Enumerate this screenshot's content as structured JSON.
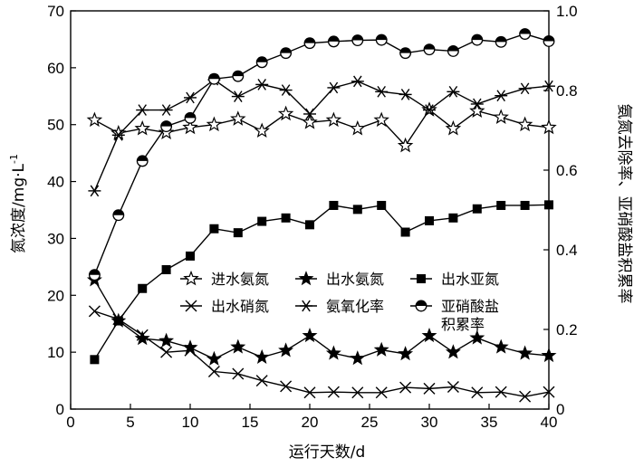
{
  "chart_data": {
    "type": "line",
    "xlabel": "运行天数/d",
    "ylabel_left": "氮浓度/mg·L",
    "ylabel_left_sup": "-1",
    "ylabel_right": "氨氮去除率、亚硝酸盐积累率",
    "xlim": [
      0,
      40
    ],
    "ylim_left": [
      0,
      70
    ],
    "ylim_right": [
      0,
      1.0
    ],
    "xticks": [
      0,
      5,
      10,
      15,
      20,
      25,
      30,
      35,
      40
    ],
    "yticks_left": [
      0,
      10,
      20,
      30,
      40,
      50,
      60,
      70
    ],
    "yticks_right": [
      0,
      0.2,
      0.4,
      0.6,
      0.8,
      1.0
    ],
    "ytick_labels_right": [
      "0",
      "0.2",
      "0.4",
      "0.6",
      "0.8",
      "1.0"
    ],
    "grid": false,
    "legend_position": "center-right",
    "series": [
      {
        "name": "进水氨氮",
        "axis": "left",
        "marker": "star-open",
        "x": [
          2,
          4,
          6,
          8,
          10,
          12,
          14,
          16,
          18,
          20,
          22,
          24,
          26,
          28,
          30,
          32,
          34,
          36,
          38,
          40
        ],
        "y": [
          50.8,
          48.5,
          49.3,
          48.6,
          49.5,
          50.0,
          51.0,
          48.9,
          51.9,
          50.4,
          50.8,
          49.3,
          50.8,
          46.3,
          52.6,
          49.3,
          52.4,
          51.3,
          50.0,
          49.5
        ]
      },
      {
        "name": "出水氨氮",
        "axis": "left",
        "marker": "star-filled",
        "x": [
          2,
          4,
          6,
          8,
          10,
          12,
          14,
          16,
          18,
          20,
          22,
          24,
          26,
          28,
          30,
          32,
          34,
          36,
          38,
          40
        ],
        "y": [
          22.7,
          15.5,
          12.4,
          12.0,
          10.8,
          8.8,
          10.9,
          9.1,
          10.3,
          12.9,
          9.8,
          8.9,
          10.4,
          9.7,
          12.9,
          10.0,
          12.5,
          10.9,
          9.8,
          9.4
        ]
      },
      {
        "name": "出水亚氮",
        "axis": "left",
        "marker": "square-filled",
        "x": [
          2,
          4,
          6,
          8,
          10,
          12,
          14,
          16,
          18,
          20,
          22,
          24,
          26,
          28,
          30,
          32,
          34,
          36,
          38,
          40
        ],
        "y": [
          8.7,
          15.5,
          21.2,
          24.5,
          26.9,
          31.7,
          31.0,
          33.0,
          33.6,
          32.4,
          35.8,
          35.1,
          35.8,
          31.1,
          33.1,
          33.6,
          35.2,
          35.8,
          35.8,
          35.9
        ]
      },
      {
        "name": "出水硝氮",
        "axis": "left",
        "marker": "x",
        "x": [
          2,
          4,
          6,
          8,
          10,
          12,
          14,
          16,
          18,
          20,
          22,
          24,
          26,
          28,
          30,
          32,
          34,
          36,
          38,
          40
        ],
        "y": [
          17.2,
          15.8,
          13.0,
          10.0,
          10.3,
          6.6,
          6.2,
          5.0,
          4.0,
          2.9,
          3.0,
          2.9,
          2.9,
          3.8,
          3.6,
          3.9,
          2.9,
          3.0,
          2.2,
          3.0
        ]
      },
      {
        "name": "氨氧化率",
        "axis": "right",
        "marker": "asterisk",
        "x": [
          2,
          4,
          6,
          8,
          10,
          12,
          14,
          16,
          18,
          20,
          22,
          24,
          26,
          28,
          30,
          32,
          34,
          36,
          38,
          40
        ],
        "y": [
          0.548,
          0.688,
          0.751,
          0.751,
          0.782,
          0.827,
          0.785,
          0.815,
          0.801,
          0.741,
          0.807,
          0.823,
          0.797,
          0.79,
          0.751,
          0.797,
          0.766,
          0.787,
          0.805,
          0.811
        ]
      },
      {
        "name_line1": "亚硝酸盐",
        "name_line2": "积累率",
        "axis": "right",
        "marker": "circle-half",
        "x": [
          2,
          4,
          6,
          8,
          10,
          12,
          14,
          16,
          18,
          20,
          22,
          24,
          26,
          28,
          30,
          32,
          34,
          36,
          38,
          40
        ],
        "y": [
          0.337,
          0.487,
          0.623,
          0.71,
          0.731,
          0.829,
          0.836,
          0.871,
          0.894,
          0.919,
          0.923,
          0.926,
          0.927,
          0.894,
          0.903,
          0.899,
          0.927,
          0.922,
          0.942,
          0.924
        ]
      }
    ]
  }
}
